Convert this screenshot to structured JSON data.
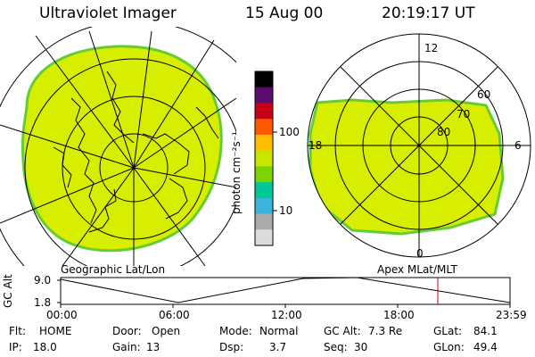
{
  "header": {
    "instrument": "Ultraviolet Imager",
    "date": "15 Aug 00",
    "time": "20:19:17 UT"
  },
  "colorbar": {
    "unit_label": "photon cm⁻²s⁻¹",
    "ticks": [
      "100",
      "10"
    ],
    "colors": [
      "#000000",
      "#5b0e6f",
      "#c80014",
      "#ff5a00",
      "#ffbe00",
      "#c8e600",
      "#7dd200",
      "#00c896",
      "#3cb4dc",
      "#aaaaaa",
      "#dcdcdc"
    ]
  },
  "polar_plot": {
    "mlt_labels": [
      "12",
      "18",
      "6",
      "0"
    ],
    "lat_labels": [
      "60",
      "70",
      "80"
    ]
  },
  "panel_labels": {
    "left": "Geographic Lat/Lon",
    "right": "Apex MLat/MLT"
  },
  "altitude_plot": {
    "ylabel": "GC Alt",
    "y_ticks": [
      "9.0",
      "1.8"
    ],
    "x_ticks": [
      "00:00",
      "06:00",
      "12:00",
      "18:00",
      "23:59"
    ],
    "marker_time": "20:19",
    "marker_color": "#cc0000"
  },
  "info": {
    "flt_label": "Flt:",
    "flt_value": "HOME",
    "ip_label": "IP:",
    "ip_value": "18.0",
    "door_label": "Door:",
    "door_value": "Open",
    "gain_label": "Gain:",
    "gain_value": "13",
    "mode_label": "Mode:",
    "mode_value": "Normal",
    "dsp_label": "Dsp:",
    "dsp_value": "3.7",
    "gcalt_label": "GC Alt:",
    "gcalt_value": "7.3 Re",
    "seq_label": "Seq:",
    "seq_value": "30",
    "glat_label": "GLat:",
    "glat_value": "84.1",
    "glon_label": "GLon:",
    "glon_value": "49.4"
  },
  "image_fill_color": "#d8ee00",
  "image_edge_color": "#66cc33"
}
